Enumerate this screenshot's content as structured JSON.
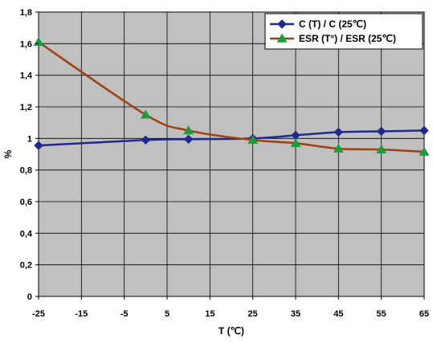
{
  "chart_data": {
    "type": "line",
    "xlabel": "T (℃)",
    "ylabel": "%",
    "xlim": [
      -25,
      65
    ],
    "ylim": [
      0,
      1.8
    ],
    "x_ticks": [
      "-25",
      "-15",
      "-5",
      "5",
      "15",
      "25",
      "35",
      "45",
      "55",
      "65"
    ],
    "y_ticks": [
      "0",
      "0,2",
      "0,4",
      "0,6",
      "0,8",
      "1",
      "1,2",
      "1,4",
      "1,6",
      "1,8"
    ],
    "grid": true,
    "plot_background": "#c0c0c0",
    "legend_position": "top-right",
    "series": [
      {
        "name": "C (T) / C (25℃)",
        "color": "#1f2a8c",
        "marker": "diamond",
        "x": [
          -25,
          0,
          10,
          25,
          35,
          45,
          55,
          65
        ],
        "y": [
          0.955,
          0.99,
          0.995,
          1.0,
          1.02,
          1.04,
          1.045,
          1.05
        ]
      },
      {
        "name": "ESR (T°) / ESR (25℃)",
        "color": "#a0400f",
        "marker_color": "#1e9a3c",
        "marker": "triangle",
        "x": [
          -25,
          0,
          10,
          25,
          35,
          45,
          55,
          65
        ],
        "y": [
          1.61,
          1.15,
          1.05,
          0.99,
          0.97,
          0.935,
          0.93,
          0.915
        ]
      }
    ]
  }
}
